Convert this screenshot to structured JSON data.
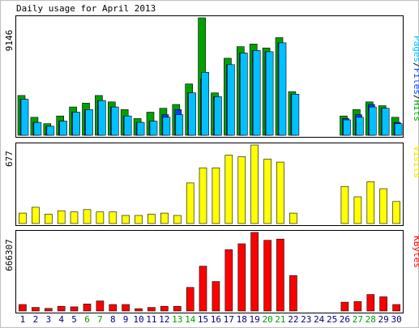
{
  "chart_data": {
    "type": "bar",
    "title": "Daily usage for April 2013",
    "categories": [
      "1",
      "2",
      "3",
      "4",
      "5",
      "6",
      "7",
      "8",
      "9",
      "10",
      "11",
      "12",
      "13",
      "14",
      "15",
      "16",
      "17",
      "18",
      "19",
      "20",
      "21",
      "22",
      "23",
      "24",
      "25",
      "26",
      "27",
      "28",
      "29",
      "30"
    ],
    "weekend_days": [
      "6",
      "7",
      "13",
      "14",
      "20",
      "21",
      "27",
      "28"
    ],
    "colors": {
      "hits": "#00a000",
      "files": "#0040ff",
      "pages": "#00c0ff",
      "visits": "#ffff00",
      "kbytes": "#ff0000",
      "weekend": "#00a000",
      "weekday": "#000080",
      "title_pages": "#00c0ff",
      "title_files": "#0040ff",
      "title_hits": "#00a000",
      "title_visits": "#ffff00",
      "title_kbytes": "#ff0000"
    },
    "panels": [
      {
        "id": "hits",
        "max_label": "9146",
        "ylim": [
          0,
          9146
        ],
        "legend": {
          "pages": "Pages",
          "sep1": "/",
          "files": "Files",
          "sep2": "/",
          "hits": "Hits"
        },
        "series": [
          {
            "key": "hits",
            "values": [
              3100,
              1400,
              900,
              1500,
              2200,
              2500,
              3100,
              2600,
              2000,
              1300,
              1800,
              2100,
              2400,
              4000,
              9146,
              3300,
              6000,
              6900,
              7100,
              6800,
              7600,
              3400,
              0,
              0,
              0,
              1500,
              2000,
              2600,
              2300,
              1400
            ]
          },
          {
            "key": "files",
            "values": [
              2800,
              1000,
              700,
              1100,
              1800,
              2000,
              2700,
              2200,
              1500,
              1000,
              1100,
              1600,
              2000,
              3300,
              4400,
              3000,
              5500,
              6400,
              6600,
              6500,
              7200,
              3200,
              0,
              0,
              0,
              1300,
              1600,
              2400,
              2100,
              1000
            ]
          },
          {
            "key": "pages",
            "values": [
              2800,
              1000,
              700,
              1100,
              1800,
              2000,
              2700,
              2200,
              1500,
              1000,
              1100,
              1400,
              1600,
              3300,
              4900,
              3000,
              5500,
              6400,
              6600,
              6500,
              7200,
              3200,
              0,
              0,
              0,
              1200,
              1400,
              2200,
              2100,
              900
            ]
          }
        ]
      },
      {
        "id": "visits",
        "max_label": "677",
        "ylim": [
          0,
          677
        ],
        "legend": {
          "visits": "Visits"
        },
        "series": [
          {
            "key": "visits",
            "values": [
              90,
              140,
              80,
              110,
              100,
              120,
              100,
              100,
              70,
              70,
              80,
              90,
              70,
              350,
              480,
              480,
              590,
              575,
              677,
              555,
              530,
              90,
              0,
              0,
              0,
              320,
              230,
              360,
              300,
              190
            ]
          }
        ]
      },
      {
        "id": "kbytes",
        "max_label": "666307",
        "ylim": [
          0,
          666307
        ],
        "legend": {
          "kbytes": "KBytes"
        },
        "series": [
          {
            "key": "kbytes",
            "values": [
              55000,
              30000,
              22000,
              40000,
              35000,
              60000,
              85000,
              55000,
              55000,
              20000,
              30000,
              40000,
              40000,
              200000,
              380000,
              250000,
              520000,
              570000,
              666307,
              600000,
              610000,
              300000,
              0,
              0,
              0,
              75000,
              80000,
              140000,
              120000,
              55000
            ]
          }
        ]
      }
    ]
  }
}
